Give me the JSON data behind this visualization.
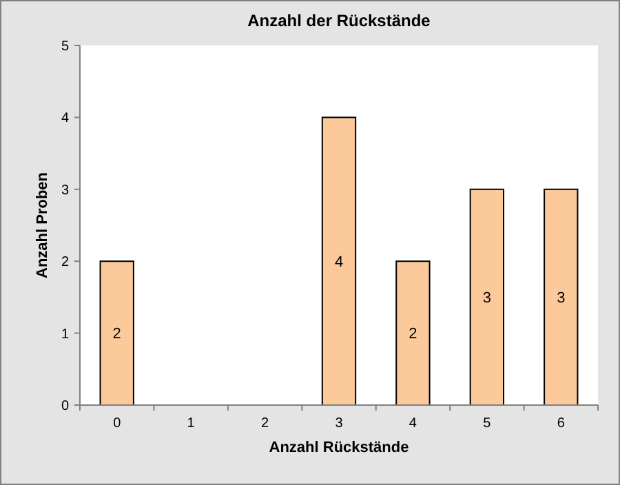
{
  "chart_data": {
    "type": "bar",
    "title": "Anzahl der Rückstände",
    "xlabel": "Anzahl Rückstände",
    "ylabel": "Anzahl Proben",
    "categories": [
      "0",
      "1",
      "2",
      "3",
      "4",
      "5",
      "6"
    ],
    "values": [
      2,
      0,
      0,
      4,
      2,
      3,
      3
    ],
    "color": "#fcc99b",
    "value_labels": [
      "2",
      null,
      null,
      "4",
      "2",
      "3",
      "3"
    ],
    "ylim": [
      0,
      5
    ],
    "yticks": [
      0,
      1,
      2,
      3,
      4,
      5
    ],
    "grid": false
  }
}
